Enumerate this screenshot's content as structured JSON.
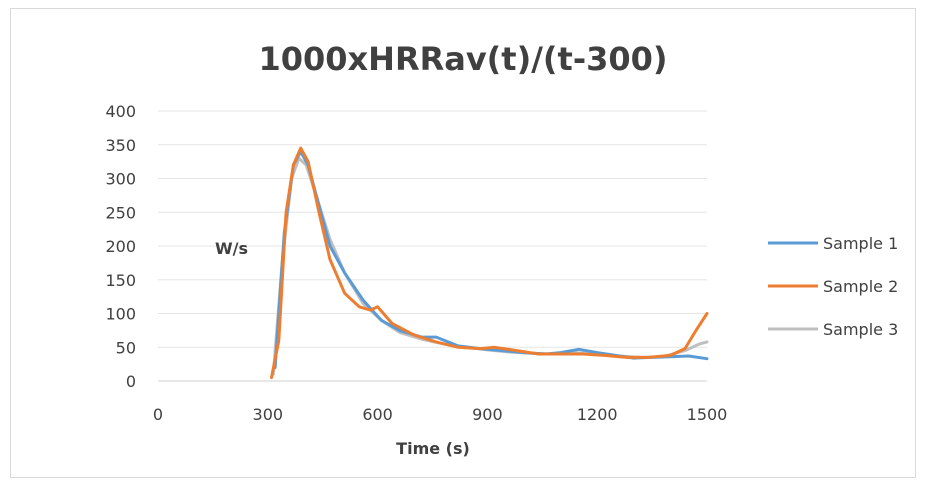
{
  "chart_data": {
    "type": "line",
    "title": "1000xHRRav(t)/(t-300)",
    "xlabel": "Time (s)",
    "ylabel": "W/s",
    "xlim": [
      0,
      1500
    ],
    "ylim": [
      0,
      400
    ],
    "xticks": [
      0,
      300,
      600,
      900,
      1200,
      1500
    ],
    "yticks": [
      0,
      50,
      100,
      150,
      200,
      250,
      300,
      350,
      400
    ],
    "grid": true,
    "legend_position": "right",
    "series": [
      {
        "name": "Sample 1",
        "color": "#5b9bd5",
        "points": [
          [
            320,
            20
          ],
          [
            345,
            220
          ],
          [
            370,
            320
          ],
          [
            390,
            340
          ],
          [
            410,
            320
          ],
          [
            440,
            260
          ],
          [
            470,
            200
          ],
          [
            510,
            160
          ],
          [
            560,
            120
          ],
          [
            610,
            90
          ],
          [
            660,
            75
          ],
          [
            720,
            65
          ],
          [
            760,
            65
          ],
          [
            820,
            52
          ],
          [
            880,
            48
          ],
          [
            940,
            45
          ],
          [
            1000,
            42
          ],
          [
            1060,
            40
          ],
          [
            1100,
            42
          ],
          [
            1150,
            47
          ],
          [
            1200,
            42
          ],
          [
            1250,
            38
          ],
          [
            1300,
            34
          ],
          [
            1350,
            35
          ],
          [
            1400,
            36
          ],
          [
            1450,
            37
          ],
          [
            1500,
            33
          ]
        ]
      },
      {
        "name": "Sample 2",
        "color": "#ed7d31",
        "points": [
          [
            310,
            5
          ],
          [
            330,
            60
          ],
          [
            350,
            250
          ],
          [
            370,
            320
          ],
          [
            390,
            345
          ],
          [
            410,
            325
          ],
          [
            440,
            250
          ],
          [
            470,
            180
          ],
          [
            510,
            130
          ],
          [
            550,
            110
          ],
          [
            580,
            105
          ],
          [
            600,
            110
          ],
          [
            640,
            85
          ],
          [
            700,
            68
          ],
          [
            760,
            58
          ],
          [
            820,
            50
          ],
          [
            880,
            48
          ],
          [
            920,
            50
          ],
          [
            980,
            45
          ],
          [
            1040,
            40
          ],
          [
            1100,
            40
          ],
          [
            1160,
            40
          ],
          [
            1220,
            38
          ],
          [
            1280,
            35
          ],
          [
            1340,
            35
          ],
          [
            1400,
            38
          ],
          [
            1440,
            48
          ],
          [
            1470,
            75
          ],
          [
            1500,
            100
          ]
        ]
      },
      {
        "name": "Sample 3",
        "color": "#bfbfbf",
        "points": [
          [
            315,
            10
          ],
          [
            340,
            180
          ],
          [
            365,
            300
          ],
          [
            385,
            330
          ],
          [
            405,
            320
          ],
          [
            435,
            270
          ],
          [
            470,
            210
          ],
          [
            510,
            160
          ],
          [
            560,
            115
          ],
          [
            610,
            90
          ],
          [
            660,
            72
          ],
          [
            720,
            62
          ],
          [
            780,
            55
          ],
          [
            840,
            50
          ],
          [
            900,
            46
          ],
          [
            960,
            43
          ],
          [
            1020,
            41
          ],
          [
            1080,
            40
          ],
          [
            1140,
            42
          ],
          [
            1200,
            40
          ],
          [
            1260,
            37
          ],
          [
            1320,
            35
          ],
          [
            1380,
            36
          ],
          [
            1440,
            45
          ],
          [
            1480,
            55
          ],
          [
            1500,
            58
          ]
        ]
      }
    ]
  }
}
